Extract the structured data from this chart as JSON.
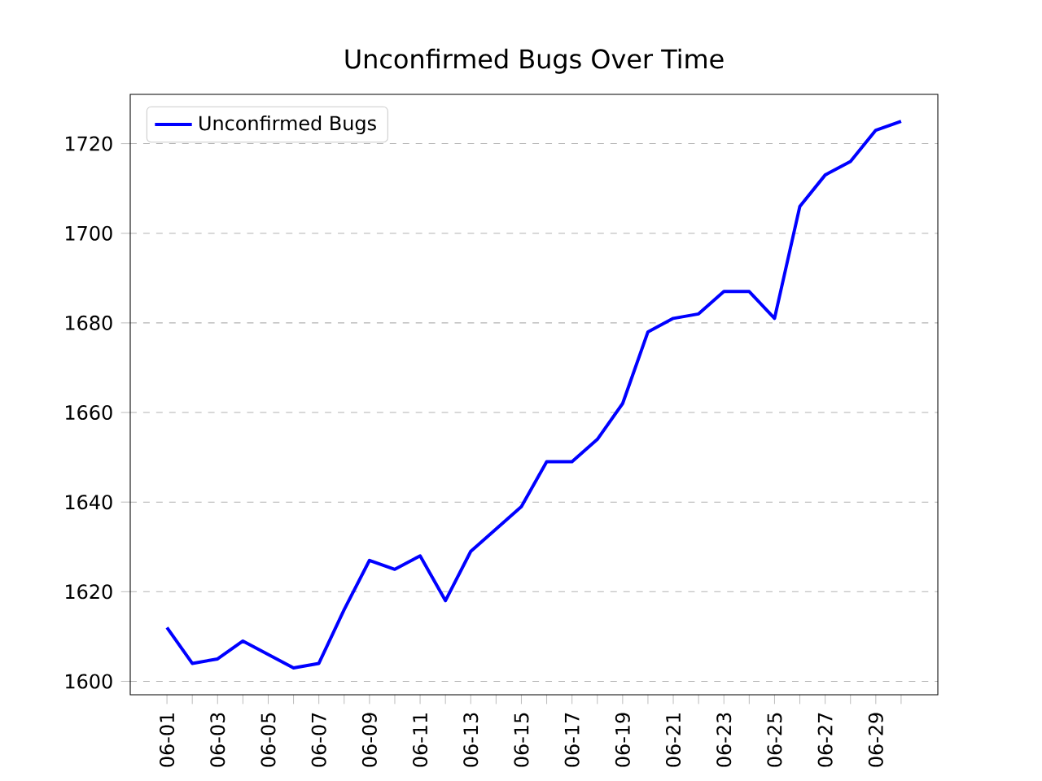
{
  "chart_data": {
    "type": "line",
    "title": "Unconfirmed Bugs Over Time",
    "categories": [
      "06-01",
      null,
      "06-03",
      null,
      "06-05",
      null,
      "06-07",
      null,
      "06-09",
      null,
      "06-11",
      null,
      "06-13",
      null,
      "06-15",
      null,
      "06-17",
      null,
      "06-19",
      null,
      "06-21",
      null,
      "06-23",
      null,
      "06-25",
      null,
      "06-27",
      null,
      "06-29",
      null
    ],
    "series": [
      {
        "name": "Unconfirmed Bugs",
        "color": "#0000ff",
        "values": [
          1612,
          1604,
          1605,
          1609,
          1606,
          1603,
          1604,
          1616,
          1627,
          1625,
          1628,
          1618,
          1629,
          1634,
          1639,
          1649,
          1649,
          1654,
          1662,
          1678,
          1681,
          1682,
          1687,
          1687,
          1681,
          1706,
          1713,
          1716,
          1723,
          1725
        ]
      }
    ],
    "ylim": [
      1597,
      1731
    ],
    "yticks": [
      1600,
      1620,
      1640,
      1660,
      1680,
      1700,
      1720
    ],
    "grid": "y",
    "legend": "top left",
    "marker": "none",
    "line_style": "solid"
  }
}
